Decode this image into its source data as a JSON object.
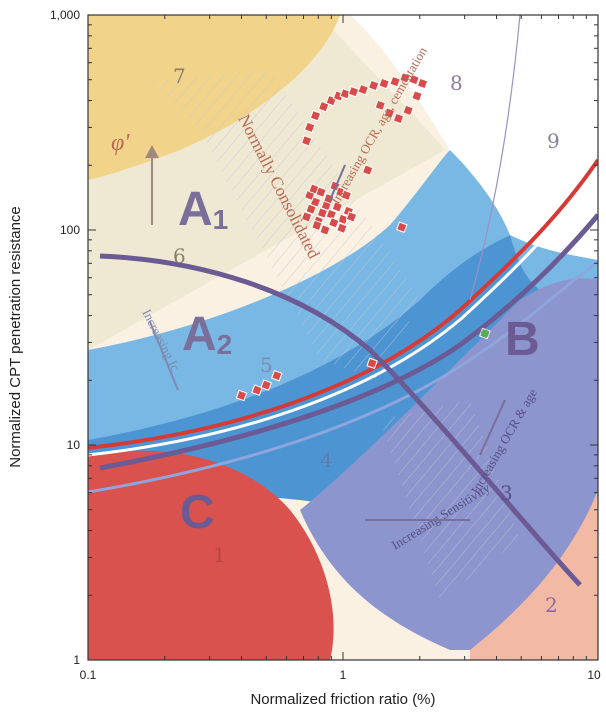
{
  "chart_data": {
    "type": "scatter",
    "title": "",
    "xlabel": "Normalized friction ratio (%)",
    "ylabel": "Normalized CPT penetration resistance",
    "xscale": "log",
    "yscale": "log",
    "xlim": [
      0.1,
      10
    ],
    "ylim": [
      1,
      1000
    ],
    "x_tick_labels": [
      "0.1",
      "1",
      "10"
    ],
    "y_tick_labels": [
      "1",
      "10",
      "100",
      "1,000"
    ],
    "grid": false,
    "legend": "none",
    "zone_labels": [
      "1",
      "2",
      "3",
      "4",
      "5",
      "6",
      "7",
      "8",
      "9"
    ],
    "region_labels": [
      {
        "main": "A",
        "sub": "1"
      },
      {
        "main": "A",
        "sub": "2"
      },
      {
        "main": "B",
        "sub": ""
      },
      {
        "main": "C",
        "sub": ""
      }
    ],
    "annotations": [
      "Normally Consolidated",
      "Increasing OCR, age, cementation",
      "Increasing OCR & age",
      "Increasing Sensitivity",
      "Increasing Ic",
      "φ'"
    ],
    "colors": {
      "zone1": "#d9524d",
      "zone2": "#f2b9a4",
      "zone3": "#8c95cd",
      "zone4": "#4d95d2",
      "zone5": "#79b8e4",
      "zone6": "#efe8d2",
      "zone7": "#f1d48a",
      "zone8": "#fbf1e2",
      "zone9": "#ffffff",
      "red_boundary": "#d63a36",
      "purple_boundary": "#6b5a93",
      "markers": "#d84b4b"
    },
    "series": [
      {
        "role": "points",
        "x": [
          0.4,
          0.46,
          0.5,
          0.55,
          1.3,
          1.7,
          1.25,
          3.6
        ],
        "y": [
          17,
          18,
          19,
          21,
          24,
          103,
          190,
          33
        ]
      },
      {
        "role": "points-cluster",
        "x": [
          0.72,
          0.75,
          0.78,
          0.8,
          0.83,
          0.86,
          0.9,
          0.95,
          1.0,
          1.05,
          0.74,
          0.77,
          0.82,
          0.88,
          0.93,
          0.98,
          1.03,
          0.79,
          0.85,
          0.92,
          0.99,
          1.08
        ],
        "y": [
          115,
          125,
          135,
          110,
          120,
          130,
          118,
          128,
          112,
          122,
          145,
          155,
          150,
          140,
          160,
          150,
          145,
          105,
          100,
          108,
          102,
          115
        ]
      },
      {
        "role": "points-arc",
        "x": [
          0.72,
          0.74,
          0.78,
          0.84,
          0.9,
          0.96,
          1.02,
          1.1,
          1.2,
          1.32,
          1.45,
          1.6,
          1.75,
          1.9,
          2.05,
          1.4,
          1.52,
          1.65,
          1.8,
          1.95
        ],
        "y": [
          260,
          300,
          340,
          375,
          400,
          420,
          430,
          440,
          450,
          470,
          480,
          490,
          510,
          500,
          480,
          380,
          350,
          330,
          360,
          420
        ]
      }
    ]
  }
}
